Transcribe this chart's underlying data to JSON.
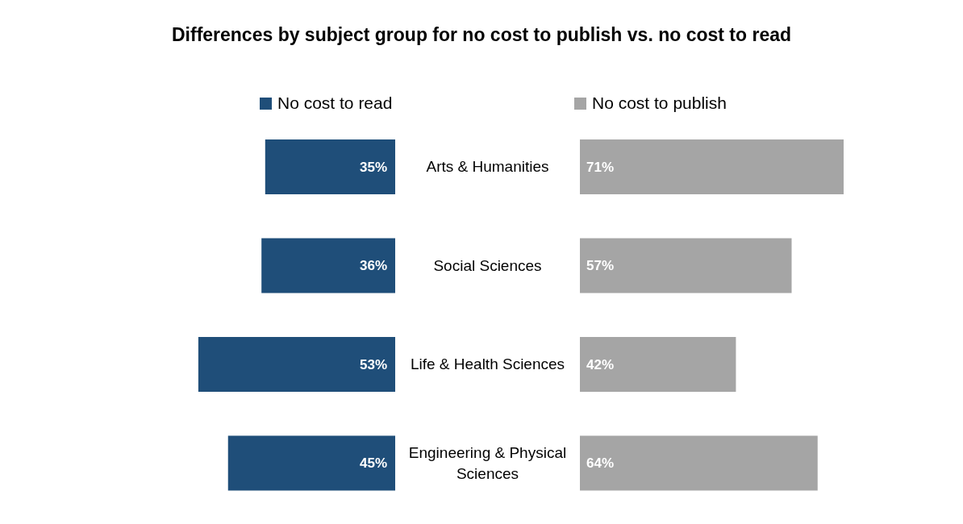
{
  "chart_data": [
    {
      "type": "bar",
      "orientation": "horizontal",
      "title": "Differences by subject group for no cost to publish vs. no cost to read",
      "categories": [
        "Arts & Humanities",
        "Social Sciences",
        "Life & Health Sciences",
        "Engineering & Physical Sciences"
      ],
      "series": [
        {
          "name": "No cost to read",
          "color": "#1f4e79",
          "values": [
            35,
            36,
            53,
            45
          ],
          "value_labels": [
            "35%",
            "36%",
            "53%",
            "45%"
          ]
        }
      ],
      "legend": "top"
    },
    {
      "type": "bar",
      "orientation": "horizontal",
      "categories": [
        null,
        null,
        null,
        null
      ],
      "series": [
        {
          "name": "No cost to publish",
          "color": "#a5a5a5",
          "values": [
            71,
            57,
            42,
            64
          ],
          "value_labels": [
            "71%",
            "57%",
            "42%",
            "64%"
          ]
        }
      ],
      "legend": "top"
    }
  ]
}
